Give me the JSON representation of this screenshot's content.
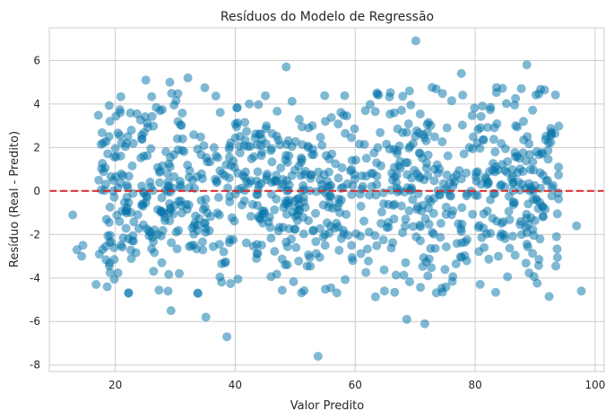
{
  "chart_data": {
    "type": "scatter",
    "title": "Resíduos do Modelo de Regressão",
    "xlabel": "Valor Predito",
    "ylabel": "Resíduo (Real - Predito)",
    "xlim": [
      9,
      101.5
    ],
    "ylim": [
      -8.3,
      7.5
    ],
    "xticks": [
      20,
      40,
      60,
      80,
      100
    ],
    "yticks": [
      -8,
      -6,
      -4,
      -2,
      0,
      2,
      4,
      6
    ],
    "grid": true,
    "point_color": "#0072a8",
    "reference_line": {
      "y": 0,
      "style": "dashed",
      "color": "#d62728"
    },
    "n_points": 1000,
    "x_range": [
      13,
      98
    ],
    "residual_sd": 2.2,
    "highlighted_points": [
      {
        "x": 70.1,
        "y": 6.9
      },
      {
        "x": 48.5,
        "y": 5.7
      },
      {
        "x": 88.6,
        "y": 5.8
      },
      {
        "x": 77.7,
        "y": 5.4
      },
      {
        "x": 25.1,
        "y": 5.1
      },
      {
        "x": 29.1,
        "y": 5.0
      },
      {
        "x": 32.1,
        "y": 5.2
      },
      {
        "x": 38.6,
        "y": -6.7
      },
      {
        "x": 53.8,
        "y": -7.6
      },
      {
        "x": 35.1,
        "y": -5.8
      },
      {
        "x": 29.3,
        "y": -5.5
      },
      {
        "x": 71.6,
        "y": -6.1
      },
      {
        "x": 68.6,
        "y": -5.9
      },
      {
        "x": 97.7,
        "y": -4.6
      },
      {
        "x": 96.9,
        "y": -1.6
      },
      {
        "x": 12.9,
        "y": -1.1
      },
      {
        "x": 13.6,
        "y": -2.7
      },
      {
        "x": 14.4,
        "y": -3.0
      },
      {
        "x": 14.6,
        "y": -2.5
      },
      {
        "x": 16.8,
        "y": -4.3
      }
    ]
  }
}
